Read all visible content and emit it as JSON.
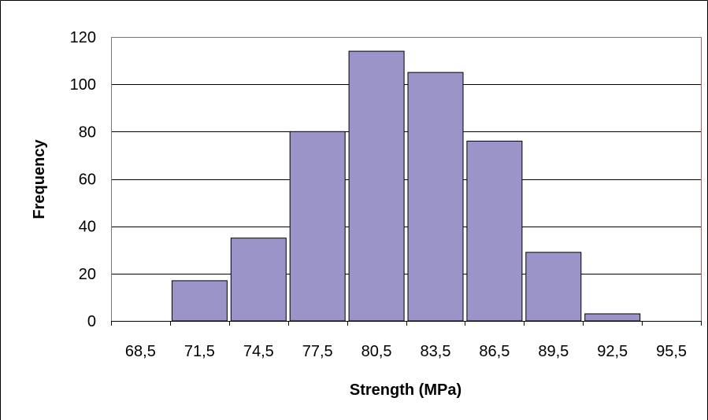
{
  "chart_data": {
    "type": "bar",
    "title": "",
    "xlabel": "Strength (MPa)",
    "ylabel": "Frequency",
    "categories": [
      "68,5",
      "71,5",
      "74,5",
      "77,5",
      "80,5",
      "83,5",
      "86,5",
      "89,5",
      "92,5",
      "95,5"
    ],
    "values": [
      0,
      17,
      35,
      80,
      114,
      105,
      76,
      29,
      3,
      0
    ],
    "ylim": [
      0,
      120
    ],
    "yticks": [
      0,
      20,
      40,
      60,
      80,
      100,
      120
    ],
    "grid": true,
    "legend": "none",
    "colors": {
      "bar_fill": "#9a94c8",
      "bar_stroke": "#000000",
      "gridline": "#000000",
      "plot_border": "#8b6b6b",
      "frame_border": "#000000"
    }
  }
}
